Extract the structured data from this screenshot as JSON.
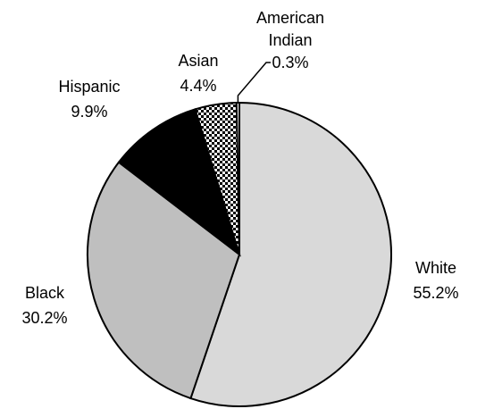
{
  "chart_data": {
    "type": "pie",
    "title": "",
    "start_angle_deg": 0,
    "direction": "clockwise",
    "slices": [
      {
        "name": "White",
        "value": 55.2,
        "label": "55.2%",
        "fill": "#d9d9d9",
        "pattern": "none"
      },
      {
        "name": "Black",
        "value": 30.2,
        "label": "30.2%",
        "fill": "#bfbfbf",
        "pattern": "none"
      },
      {
        "name": "Hispanic",
        "value": 9.9,
        "label": "9.9%",
        "fill": "#000000",
        "pattern": "none"
      },
      {
        "name": "Asian",
        "value": 4.4,
        "label": "4.4%",
        "fill": "#ffffff",
        "pattern": "checker"
      },
      {
        "name": "American Indian",
        "value": 0.3,
        "label": "0.3%",
        "fill": "#ffffff",
        "pattern": "none"
      }
    ]
  }
}
